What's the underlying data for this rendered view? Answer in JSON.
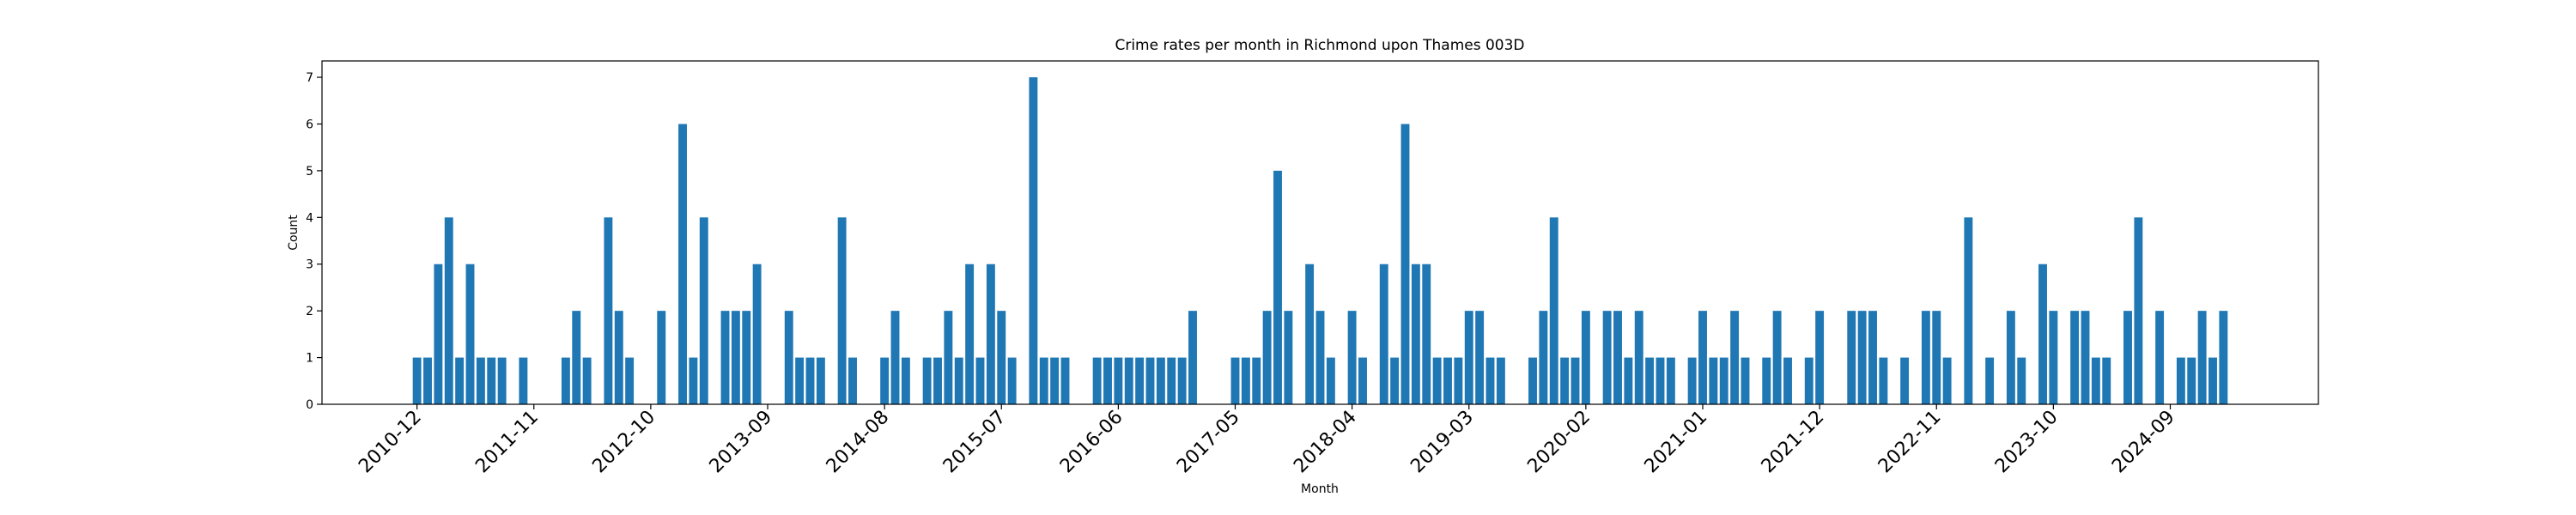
{
  "chart_data": {
    "type": "bar",
    "title": "Crime rates per month in Richmond upon Thames 003D",
    "x_label": "Month",
    "y_label": "Count",
    "color": "#1f77b4",
    "categories": [
      "2010-12",
      null,
      null,
      null,
      null,
      null,
      null,
      null,
      null,
      null,
      null,
      "2011-11",
      null,
      null,
      null,
      null,
      null,
      null,
      null,
      null,
      null,
      null,
      "2012-10",
      null,
      null,
      null,
      null,
      null,
      null,
      null,
      null,
      null,
      null,
      "2013-09",
      null,
      null,
      null,
      null,
      null,
      null,
      null,
      null,
      null,
      null,
      "2014-08",
      null,
      null,
      null,
      null,
      null,
      null,
      null,
      null,
      null,
      null,
      "2015-07",
      null,
      null,
      null,
      null,
      null,
      null,
      null,
      null,
      null,
      null,
      "2016-06",
      null,
      null,
      null,
      null,
      null,
      null,
      null,
      null,
      null,
      null,
      "2017-05",
      null,
      null,
      null,
      null,
      null,
      null,
      null,
      null,
      null,
      null,
      "2018-04",
      null,
      null,
      null,
      null,
      null,
      null,
      null,
      null,
      null,
      null,
      "2019-03",
      null,
      null,
      null,
      null,
      null,
      null,
      null,
      null,
      null,
      null,
      "2020-02",
      null,
      null,
      null,
      null,
      null,
      null,
      null,
      null,
      null,
      null,
      "2021-01",
      null,
      null,
      null,
      null,
      null,
      null,
      null,
      null,
      null,
      null,
      "2021-12",
      null,
      null,
      null,
      null,
      null,
      null,
      null,
      null,
      null,
      null,
      "2022-11",
      null,
      null,
      null,
      null,
      null,
      null,
      null,
      null,
      null,
      null,
      "2023-10",
      null,
      null,
      null,
      null,
      null,
      null,
      null,
      null,
      null,
      null,
      "2024-09",
      null,
      null,
      null,
      null,
      null
    ],
    "values": [
      1,
      1,
      3,
      4,
      1,
      3,
      1,
      1,
      1,
      0,
      1,
      0,
      0,
      0,
      1,
      2,
      1,
      0,
      4,
      2,
      1,
      0,
      0,
      2,
      0,
      6,
      1,
      4,
      0,
      2,
      2,
      2,
      3,
      0,
      0,
      2,
      1,
      1,
      1,
      0,
      4,
      1,
      0,
      0,
      1,
      2,
      1,
      0,
      1,
      1,
      2,
      1,
      3,
      1,
      3,
      2,
      1,
      0,
      7,
      1,
      1,
      1,
      0,
      0,
      1,
      1,
      1,
      1,
      1,
      1,
      1,
      1,
      1,
      2,
      0,
      0,
      0,
      1,
      1,
      1,
      2,
      5,
      2,
      0,
      3,
      2,
      1,
      0,
      2,
      1,
      0,
      3,
      1,
      6,
      3,
      3,
      1,
      1,
      1,
      2,
      2,
      1,
      1,
      0,
      0,
      1,
      2,
      4,
      1,
      1,
      2,
      0,
      2,
      2,
      1,
      2,
      1,
      1,
      1,
      0,
      1,
      2,
      1,
      1,
      2,
      1,
      0,
      1,
      2,
      1,
      0,
      1,
      2,
      0,
      0,
      2,
      2,
      2,
      1,
      0,
      1,
      0,
      2,
      2,
      1,
      0,
      4,
      0,
      1,
      0,
      2,
      1,
      0,
      3,
      2,
      0,
      2,
      2,
      1,
      1,
      0,
      2,
      4,
      0,
      2,
      0,
      1,
      1,
      2,
      1,
      2
    ],
    "ylim": [
      0,
      7.35
    ],
    "yticks": [
      0,
      1,
      2,
      3,
      4,
      5,
      6,
      7
    ]
  }
}
